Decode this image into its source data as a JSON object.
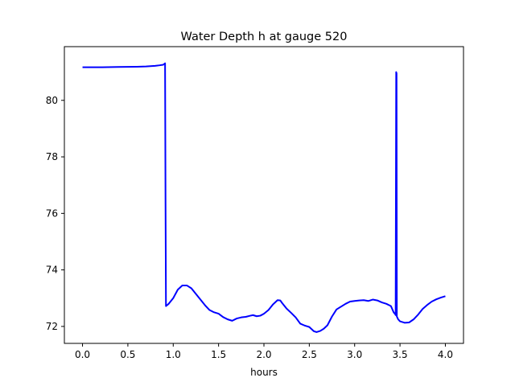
{
  "chart_data": {
    "type": "line",
    "title": "Water Depth h at gauge 520",
    "xlabel": "hours",
    "ylabel": "",
    "xlim": [
      -0.2,
      4.2
    ],
    "ylim": [
      71.4,
      81.9
    ],
    "xticks": [
      0.0,
      0.5,
      1.0,
      1.5,
      2.0,
      2.5,
      3.0,
      3.5,
      4.0
    ],
    "xtick_labels": [
      "0.0",
      "0.5",
      "1.0",
      "1.5",
      "2.0",
      "2.5",
      "3.0",
      "3.5",
      "4.0"
    ],
    "yticks": [
      72,
      74,
      76,
      78,
      80
    ],
    "ytick_labels": [
      "72",
      "74",
      "76",
      "78",
      "80"
    ],
    "grid": false,
    "series": [
      {
        "color": "#0000ff",
        "x": [
          0.0,
          0.2,
          0.4,
          0.6,
          0.7,
          0.8,
          0.85,
          0.89,
          0.91,
          0.915,
          0.92,
          0.95,
          1.0,
          1.05,
          1.1,
          1.15,
          1.2,
          1.25,
          1.3,
          1.35,
          1.4,
          1.45,
          1.5,
          1.55,
          1.6,
          1.65,
          1.7,
          1.75,
          1.8,
          1.85,
          1.88,
          1.92,
          1.96,
          2.0,
          2.05,
          2.1,
          2.15,
          2.18,
          2.2,
          2.25,
          2.3,
          2.35,
          2.4,
          2.45,
          2.5,
          2.55,
          2.58,
          2.62,
          2.66,
          2.7,
          2.75,
          2.8,
          2.85,
          2.9,
          2.95,
          3.0,
          3.05,
          3.1,
          3.15,
          3.2,
          3.25,
          3.3,
          3.35,
          3.4,
          3.43,
          3.45,
          3.452,
          3.458,
          3.462,
          3.465,
          3.48,
          3.5,
          3.55,
          3.6,
          3.65,
          3.7,
          3.75,
          3.8,
          3.85,
          3.9,
          3.95,
          4.0
        ],
        "y": [
          81.17,
          81.17,
          81.18,
          81.19,
          81.2,
          81.22,
          81.24,
          81.26,
          81.31,
          76.5,
          72.72,
          72.8,
          73.0,
          73.3,
          73.45,
          73.45,
          73.35,
          73.15,
          72.95,
          72.75,
          72.58,
          72.5,
          72.45,
          72.33,
          72.25,
          72.2,
          72.28,
          72.32,
          72.34,
          72.38,
          72.4,
          72.36,
          72.38,
          72.45,
          72.58,
          72.78,
          72.93,
          72.92,
          72.83,
          72.63,
          72.48,
          72.32,
          72.1,
          72.03,
          71.98,
          71.83,
          71.8,
          71.84,
          71.92,
          72.04,
          72.35,
          72.6,
          72.7,
          72.8,
          72.88,
          72.9,
          72.92,
          72.93,
          72.9,
          72.95,
          72.92,
          72.85,
          72.8,
          72.72,
          72.5,
          72.42,
          72.4,
          81.0,
          80.95,
          72.35,
          72.25,
          72.18,
          72.13,
          72.14,
          72.25,
          72.42,
          72.62,
          72.76,
          72.88,
          72.96,
          73.02,
          73.07
        ]
      }
    ]
  }
}
